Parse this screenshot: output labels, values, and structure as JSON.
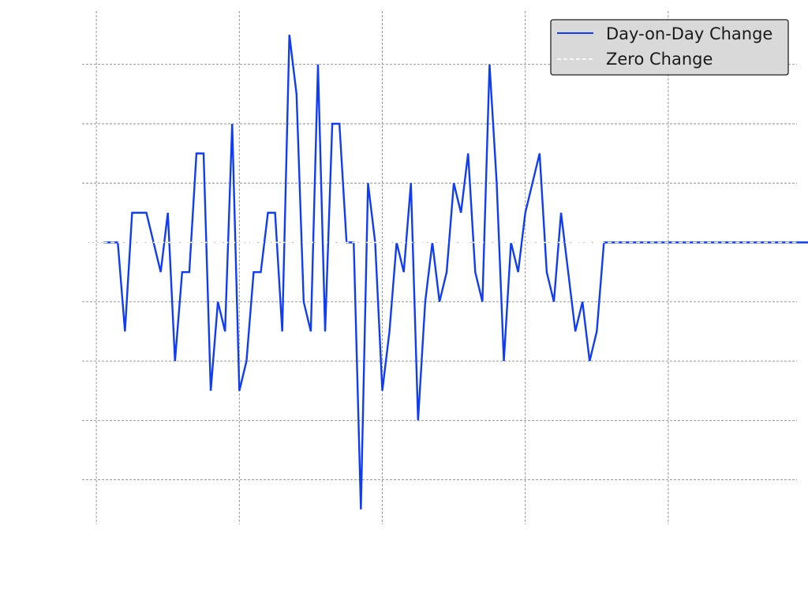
{
  "chart_data": {
    "type": "line",
    "title": "",
    "xlabel": "",
    "ylabel": "",
    "xlim": [
      -2,
      98
    ],
    "ylim": [
      -9.5,
      7.8
    ],
    "grid": true,
    "x_gridlines": [
      0,
      20,
      40,
      60,
      80,
      100
    ],
    "y_gridlines": [
      -8,
      -6,
      -4,
      -2,
      0,
      2,
      4,
      6
    ],
    "legend": {
      "placement": "top-right",
      "entries": [
        {
          "label": "Day-on-Day Change",
          "color": "#0f3cf5",
          "style": "solid"
        },
        {
          "label": "Zero Change",
          "color": "#ffffff",
          "style": "dashed"
        }
      ]
    },
    "series": [
      {
        "name": "Day-on-Day Change",
        "color": "#0f3cf5",
        "x": [
          1,
          2,
          3,
          4,
          5,
          6,
          7,
          8,
          9,
          10,
          11,
          12,
          13,
          14,
          15,
          16,
          17,
          18,
          19,
          20,
          21,
          22,
          23,
          24,
          25,
          26,
          27,
          28,
          29,
          30,
          31,
          32,
          33,
          34,
          35,
          36,
          37,
          38,
          39,
          40,
          41,
          42,
          43,
          44,
          45,
          46,
          47,
          48,
          49,
          50,
          51,
          52,
          53,
          54,
          55,
          56,
          57,
          58,
          59,
          60,
          61,
          62,
          63,
          64,
          65,
          66,
          67,
          68,
          69,
          70,
          71,
          72,
          73,
          74,
          75,
          76,
          77,
          78,
          79,
          80,
          81,
          82,
          83,
          84,
          85,
          86,
          87,
          88,
          89,
          90,
          91,
          92,
          93,
          94,
          95,
          96,
          97,
          98,
          99,
          100
        ],
        "values": [
          0,
          0,
          0,
          -3,
          1,
          1,
          1,
          0,
          -1,
          1,
          -4,
          -1,
          -1,
          3,
          3,
          -5,
          -2,
          -3,
          4,
          -5,
          -4,
          -1,
          -1,
          1,
          1,
          -3,
          7,
          5,
          -2,
          -3,
          6,
          -3,
          4,
          4,
          0,
          0,
          -9,
          2,
          0,
          -5,
          -3,
          0,
          -1,
          2,
          -6,
          -2,
          0,
          -2,
          -1,
          2,
          1,
          3,
          -1,
          -2,
          6,
          2,
          -4,
          0,
          -1,
          1,
          2,
          3,
          -1,
          -2,
          1,
          -1,
          -3,
          -2,
          -4,
          -3,
          0,
          0,
          0,
          0,
          0,
          0,
          0,
          0,
          0,
          0,
          0,
          0,
          0,
          0,
          0,
          0,
          0,
          0,
          0,
          0,
          0,
          0,
          0,
          0,
          0,
          0,
          0,
          0,
          0,
          0
        ]
      },
      {
        "name": "Zero Change",
        "color": "#ffffff",
        "x": [
          1,
          98
        ],
        "values": [
          0,
          0
        ]
      }
    ],
    "reference_line": {
      "value": 0,
      "style": "dotted",
      "color": "#b0b0b0"
    }
  }
}
